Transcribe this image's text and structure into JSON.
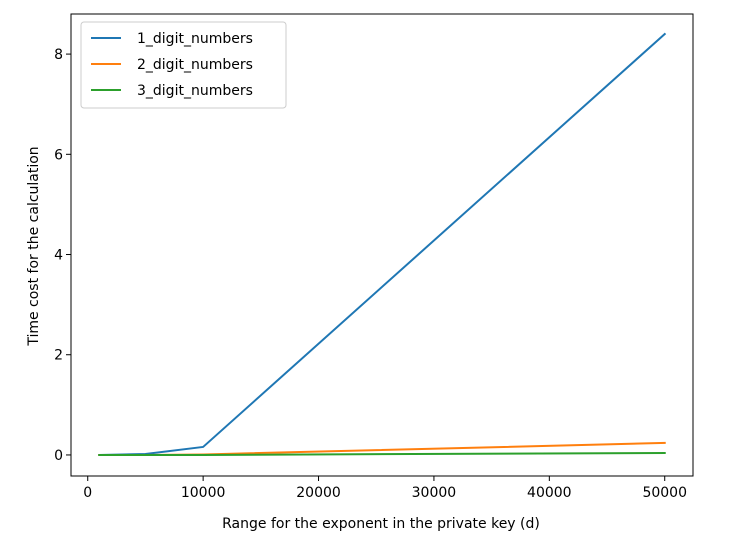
{
  "chart_data": {
    "type": "line",
    "title": "",
    "xlabel": "Range for the exponent in the private key (d)",
    "ylabel": "Time cost for the calculation",
    "xlim": [
      -1450,
      52450
    ],
    "ylim": [
      -0.42,
      8.8
    ],
    "x_ticks": [
      0,
      10000,
      20000,
      30000,
      40000,
      50000
    ],
    "x_tick_labels": [
      "0",
      "10000",
      "20000",
      "30000",
      "40000",
      "50000"
    ],
    "y_ticks": [
      0,
      2,
      4,
      6,
      8
    ],
    "y_tick_labels": [
      "0",
      "2",
      "4",
      "6",
      "8"
    ],
    "grid": false,
    "legend_position": "top-left",
    "x": [
      1000,
      5000,
      10000,
      50000
    ],
    "series": [
      {
        "name": "1_digit_numbers",
        "color": "#1f77b4",
        "values": [
          0.0,
          0.02,
          0.16,
          8.4
        ]
      },
      {
        "name": "2_digit_numbers",
        "color": "#ff7f0e",
        "values": [
          0.0,
          0.0,
          0.01,
          0.24
        ]
      },
      {
        "name": "3_digit_numbers",
        "color": "#2ca02c",
        "values": [
          0.0,
          0.0,
          0.0,
          0.04
        ]
      }
    ]
  }
}
